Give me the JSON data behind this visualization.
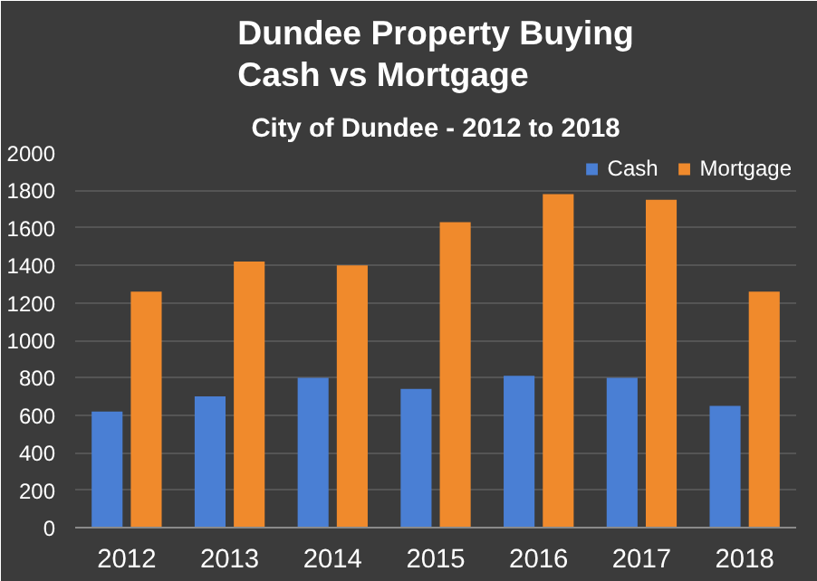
{
  "chart_data": {
    "type": "bar",
    "title": "Dundee Property Buying\nCash vs Mortgage",
    "subtitle": "City of Dundee - 2012 to 2018",
    "categories": [
      "2012",
      "2013",
      "2014",
      "2015",
      "2016",
      "2017",
      "2018"
    ],
    "series": [
      {
        "name": "Cash",
        "color": "#4a7fd4",
        "values": [
          620,
          700,
          800,
          740,
          810,
          800,
          650
        ]
      },
      {
        "name": "Mortgage",
        "color": "#f08a2c",
        "values": [
          1260,
          1420,
          1400,
          1630,
          1780,
          1750,
          1260
        ]
      }
    ],
    "ylim": [
      0,
      2000
    ],
    "yticks": [
      0,
      200,
      400,
      600,
      800,
      1000,
      1200,
      1400,
      1600,
      1800,
      2000
    ],
    "grid": "y",
    "legend": "top right"
  }
}
